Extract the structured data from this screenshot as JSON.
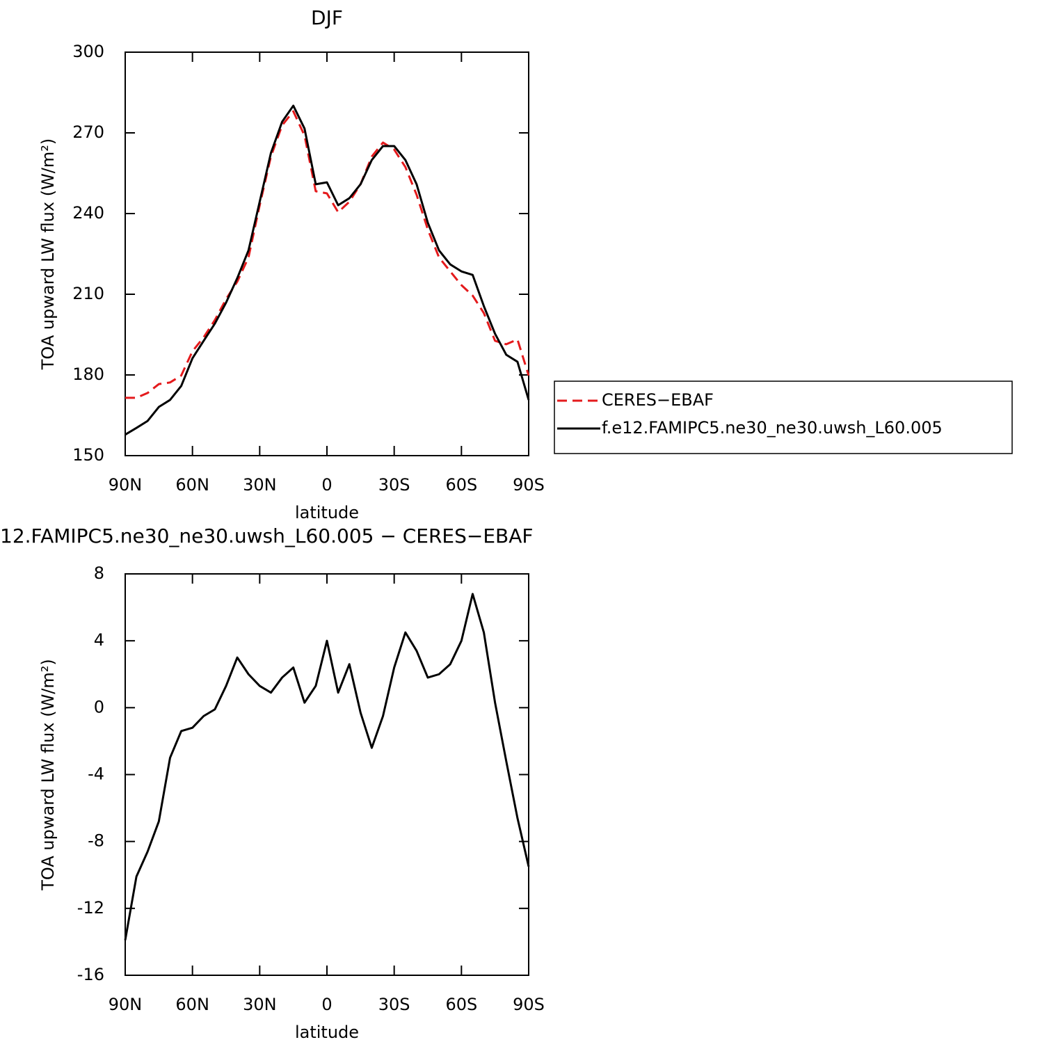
{
  "chart_data": [
    {
      "type": "line",
      "title": "DJF",
      "xlabel": "latitude",
      "ylabel": "TOA upward LW flux (W/m²)",
      "x": [
        90,
        85,
        80,
        75,
        70,
        65,
        60,
        55,
        50,
        45,
        40,
        35,
        30,
        25,
        20,
        15,
        10,
        5,
        0,
        -5,
        -10,
        -15,
        -20,
        -25,
        -30,
        -35,
        -40,
        -45,
        -50,
        -55,
        -60,
        -65,
        -70,
        -75,
        -80,
        -85,
        -90
      ],
      "series": [
        {
          "name": "CERES−EBAF",
          "color": "#e41a1c",
          "dash": "dashed",
          "values": [
            171.5,
            171.5,
            173.3,
            176.6,
            177.2,
            179.8,
            188.8,
            194,
            200.4,
            208.2,
            214.7,
            223.7,
            243.1,
            261.2,
            272.8,
            278,
            269,
            248.3,
            247.5,
            240.5,
            244.4,
            250.9,
            261.2,
            266.4,
            263.8,
            257.3,
            247,
            234.1,
            223.7,
            218.5,
            213.4,
            209.5,
            203,
            192.7,
            191.4,
            193.2,
            179.8
          ]
        },
        {
          "name": "f.e12.FAMIPC5.ne30_ne30.uwsh_L60.005",
          "color": "#000000",
          "dash": "solid",
          "values": [
            157.8,
            160.3,
            162.9,
            168.1,
            170.7,
            175.9,
            186.2,
            192.7,
            199.1,
            206.9,
            216,
            226.3,
            244.4,
            262.5,
            274.1,
            280.1,
            271.6,
            250.9,
            251.6,
            243.1,
            245.7,
            250.9,
            259.9,
            265.1,
            265.1,
            259.9,
            250.9,
            236.6,
            226.3,
            221.1,
            218.5,
            217.2,
            205.6,
            195.3,
            187.5,
            184.9,
            170.7
          ]
        }
      ],
      "xlim": [
        90,
        -90
      ],
      "xticks": [
        {
          "value": 90,
          "label": "90N"
        },
        {
          "value": 60,
          "label": "60N"
        },
        {
          "value": 30,
          "label": "30N"
        },
        0,
        {
          "value": -30,
          "label": "30S"
        },
        {
          "value": -60,
          "label": "60S"
        },
        {
          "value": -90,
          "label": "90S"
        }
      ],
      "ylim": [
        150,
        300
      ],
      "yticks": [
        150,
        180,
        210,
        240,
        270,
        300
      ],
      "legend": "right"
    },
    {
      "type": "line",
      "title": "12.FAMIPC5.ne30_ne30.uwsh_L60.005 − CERES−EBAF",
      "xlabel": "latitude",
      "ylabel": "TOA upward LW flux (W/m²)",
      "x": [
        90,
        85,
        80,
        75,
        70,
        65,
        60,
        55,
        50,
        45,
        40,
        35,
        30,
        25,
        20,
        15,
        10,
        5,
        0,
        -5,
        -10,
        -15,
        -20,
        -25,
        -30,
        -35,
        -40,
        -45,
        -50,
        -55,
        -60,
        -65,
        -70,
        -75,
        -80,
        -85,
        -90
      ],
      "series": [
        {
          "color": "#000000",
          "dash": "solid",
          "values": [
            -13.9,
            -10.1,
            -8.6,
            -6.8,
            -3.0,
            -1.4,
            -1.2,
            -0.5,
            -0.1,
            1.3,
            3.0,
            2.0,
            1.3,
            0.9,
            1.8,
            2.4,
            0.3,
            1.3,
            4.0,
            0.9,
            2.6,
            -0.3,
            -2.4,
            -0.5,
            2.4,
            4.5,
            3.4,
            1.8,
            2.0,
            2.6,
            4.0,
            6.8,
            4.5,
            0.3,
            -3.2,
            -6.6,
            -9.5
          ]
        }
      ],
      "xlim": [
        90,
        -90
      ],
      "xticks": [
        {
          "value": 90,
          "label": "90N"
        },
        {
          "value": 60,
          "label": "60N"
        },
        {
          "value": 30,
          "label": "30N"
        },
        0,
        {
          "value": -30,
          "label": "30S"
        },
        {
          "value": -60,
          "label": "60S"
        },
        {
          "value": -90,
          "label": "90S"
        }
      ],
      "ylim": [
        -16,
        8
      ],
      "yticks": [
        -16,
        -12,
        -8,
        -4,
        0,
        4,
        8
      ]
    }
  ]
}
